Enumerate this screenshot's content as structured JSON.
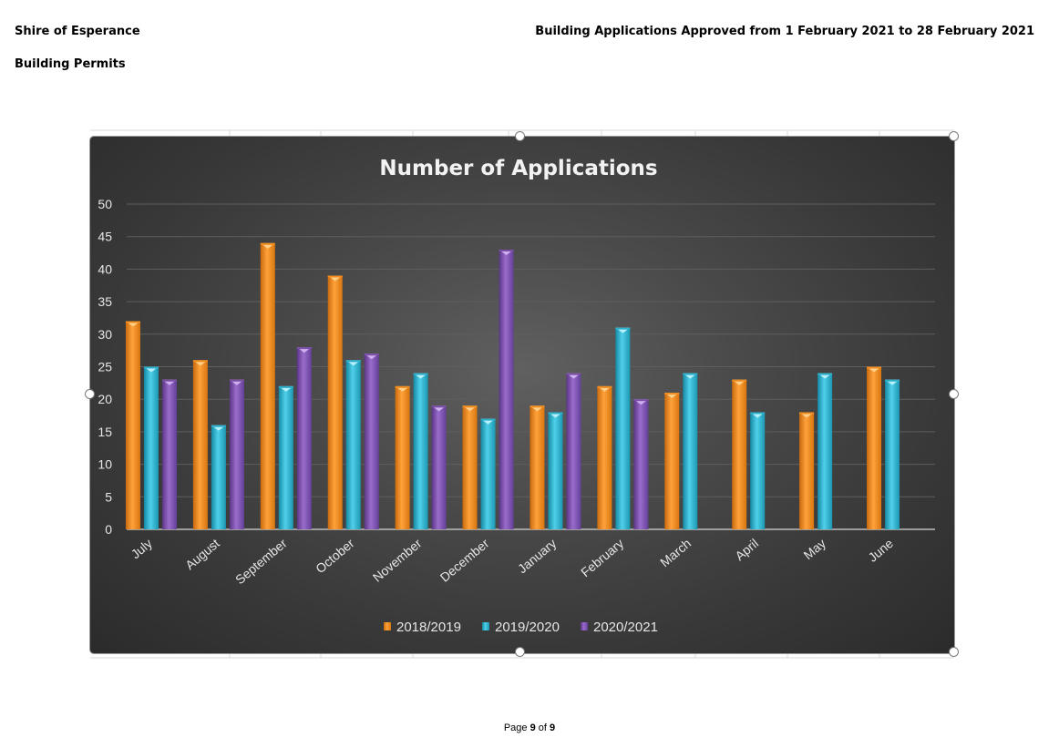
{
  "header": {
    "org": "Shire of Esperance",
    "section": "Building Permits",
    "report_title": "Building Applications Approved from 1 February 2021 to 28 February 2021"
  },
  "footer": {
    "page_word": "Page",
    "page_current": "9",
    "of_word": "of",
    "page_total": "9"
  },
  "colors": {
    "series_2018_2019": "#f28c1e",
    "series_2019_2020": "#2bb0cc",
    "series_2020_2021": "#7a4ea6",
    "chart_background": "#3a3a3a"
  },
  "chart_data": {
    "type": "bar",
    "title": "Number of Applications",
    "xlabel": "",
    "ylabel": "",
    "ylim": [
      0,
      50
    ],
    "yticks": [
      0,
      5,
      10,
      15,
      20,
      25,
      30,
      35,
      40,
      45,
      50
    ],
    "grid": true,
    "legend_position": "bottom",
    "categories": [
      "July",
      "August",
      "September",
      "October",
      "November",
      "December",
      "January",
      "February",
      "March",
      "April",
      "May",
      "June"
    ],
    "series": [
      {
        "name": "2018/2019",
        "values": [
          32,
          26,
          44,
          39,
          22,
          19,
          19,
          22,
          21,
          23,
          18,
          25
        ]
      },
      {
        "name": "2019/2020",
        "values": [
          25,
          16,
          22,
          26,
          24,
          17,
          18,
          31,
          24,
          18,
          24,
          23
        ]
      },
      {
        "name": "2020/2021",
        "values": [
          23,
          23,
          28,
          27,
          19,
          43,
          24,
          20,
          null,
          null,
          null,
          null
        ]
      }
    ]
  }
}
